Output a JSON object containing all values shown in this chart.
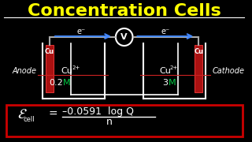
{
  "title": "Concentration Cells",
  "title_color": "#FFFF00",
  "bg_color": "#000000",
  "anode_label": "Anode",
  "cathode_label": "Cathode",
  "cu_left": "Cu",
  "cu_right": "Cu",
  "ion_left": "Cu",
  "ion_right": "Cu",
  "superscript_left": "2+",
  "superscript_right": "2+",
  "conc_left_num": "0.2",
  "conc_left_M": "M",
  "conc_right_num": "3",
  "conc_right_M": "M",
  "formula_epsilon": "ε",
  "formula_cell": "cell",
  "formula_rhs": "= –0.0591 log Q",
  "formula_denom": "n",
  "voltmeter": "V",
  "electron_label": "e⁻",
  "formula_box_color": "#CC0000",
  "wire_color": "#AAAAAA",
  "arrow_color": "#4488FF",
  "electrode_color": "#CC2222",
  "solution_color": "#111111"
}
